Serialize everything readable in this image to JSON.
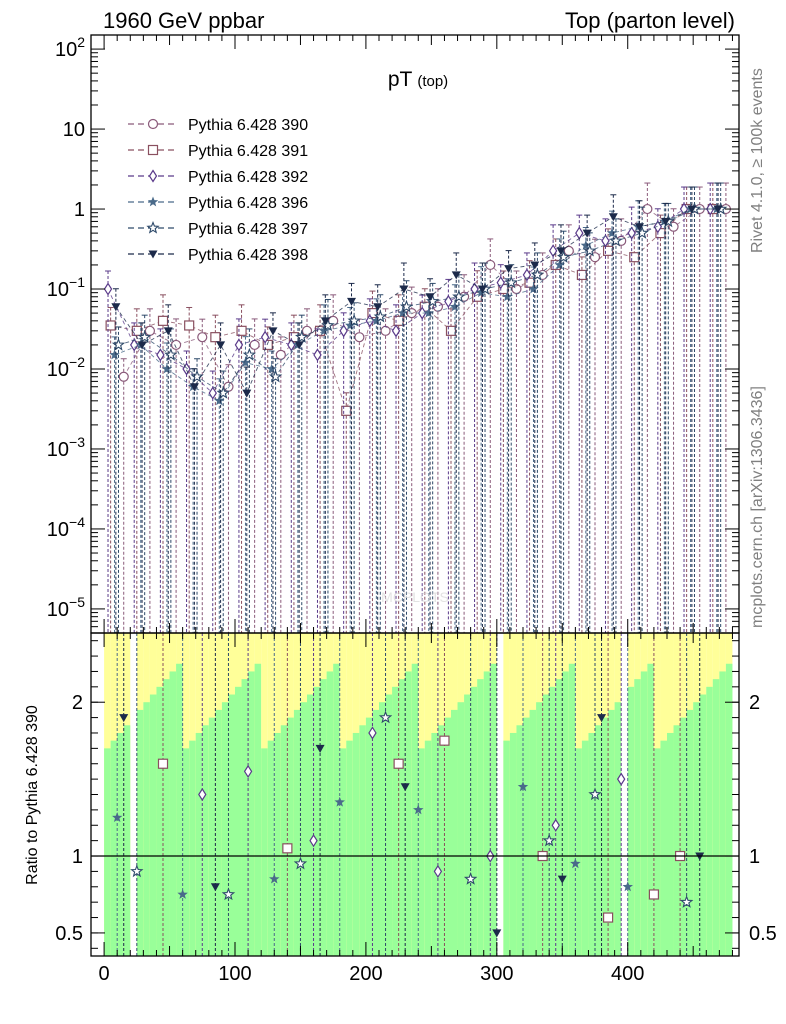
{
  "chart_data": [
    {
      "type": "scatter",
      "panel": "main",
      "title": "pT",
      "title_sub": "(top)",
      "top_left_label": "1960 GeV ppbar",
      "top_right_label": "Top (parton level)",
      "side_label_upper": "Rivet 4.1.0, ≥ 100k events",
      "side_label_lower": "mcplots.cern.ch [arXiv:1306.3436]",
      "yscale": "log",
      "xlim": [
        -10,
        485
      ],
      "ylim": [
        5e-06,
        150
      ],
      "xlabel": "",
      "ylabel": "",
      "y_ticks": [
        {
          "value": 100,
          "base": "10",
          "exp": "2"
        },
        {
          "value": 10,
          "base": "10",
          "exp": ""
        },
        {
          "value": 1,
          "base": "1",
          "exp": ""
        },
        {
          "value": 0.1,
          "base": "10",
          "exp": "−1"
        },
        {
          "value": 0.01,
          "base": "10",
          "exp": "−2"
        },
        {
          "value": 0.001,
          "base": "10",
          "exp": "−3"
        },
        {
          "value": 0.0001,
          "base": "10",
          "exp": "−4"
        },
        {
          "value": 1e-05,
          "base": "10",
          "exp": "−5"
        }
      ],
      "legend_position": "top-left",
      "series": [
        {
          "name": "Pythia 6.428 390",
          "color": "#8a5a7a",
          "marker": "circle-open",
          "x": [
            15,
            35,
            55,
            75,
            95,
            115,
            135,
            155,
            175,
            195,
            215,
            235,
            255,
            275,
            295,
            315,
            335,
            355,
            375,
            395,
            415,
            435,
            455,
            475
          ],
          "y": [
            0.008,
            0.03,
            0.02,
            0.025,
            0.006,
            0.02,
            0.015,
            0.03,
            0.04,
            0.025,
            0.03,
            0.05,
            0.06,
            0.08,
            0.2,
            0.1,
            0.15,
            0.3,
            0.25,
            0.4,
            1.0,
            0.6,
            1.0,
            1.0
          ]
        },
        {
          "name": "Pythia 6.428 391",
          "color": "#8a5060",
          "marker": "square-open",
          "x": [
            5,
            25,
            45,
            65,
            85,
            105,
            125,
            145,
            165,
            185,
            205,
            225,
            245,
            265,
            285,
            305,
            325,
            345,
            365,
            385,
            405,
            425,
            445,
            465
          ],
          "y": [
            0.035,
            0.03,
            0.04,
            0.035,
            0.025,
            0.03,
            0.02,
            0.025,
            0.03,
            0.003,
            0.05,
            0.04,
            0.06,
            0.03,
            0.08,
            0.1,
            0.12,
            0.2,
            0.15,
            0.3,
            0.25,
            0.5,
            1.0,
            1.0
          ]
        },
        {
          "name": "Pythia 6.428 392",
          "color": "#5a3a8a",
          "marker": "diamond-open",
          "x": [
            3,
            23,
            43,
            63,
            83,
            103,
            123,
            143,
            163,
            183,
            203,
            223,
            243,
            263,
            283,
            303,
            323,
            343,
            363,
            383,
            403,
            423,
            443,
            463
          ],
          "y": [
            0.1,
            0.02,
            0.015,
            0.01,
            0.005,
            0.02,
            0.025,
            0.02,
            0.015,
            0.03,
            0.04,
            0.03,
            0.05,
            0.07,
            0.1,
            0.12,
            0.15,
            0.3,
            0.5,
            0.4,
            0.5,
            0.6,
            1.0,
            1.0
          ]
        },
        {
          "name": "Pythia 6.428 396",
          "color": "#4a6a8a",
          "marker": "star-solid",
          "x": [
            8,
            28,
            48,
            68,
            88,
            108,
            128,
            148,
            168,
            188,
            208,
            228,
            248,
            268,
            288,
            308,
            328,
            348,
            368,
            388,
            408,
            428,
            448,
            468
          ],
          "y": [
            0.015,
            0.02,
            0.01,
            0.006,
            0.004,
            0.012,
            0.01,
            0.02,
            0.03,
            0.035,
            0.04,
            0.05,
            0.05,
            0.06,
            0.09,
            0.08,
            0.1,
            0.2,
            0.35,
            0.5,
            0.6,
            0.7,
            1.0,
            1.0
          ]
        },
        {
          "name": "Pythia 6.428 397",
          "color": "#2e4a6a",
          "marker": "star-open",
          "x": [
            11,
            31,
            51,
            71,
            91,
            111,
            131,
            151,
            171,
            191,
            211,
            231,
            251,
            271,
            291,
            311,
            331,
            351,
            371,
            391,
            411,
            431,
            451,
            471
          ],
          "y": [
            0.02,
            0.025,
            0.015,
            0.008,
            0.005,
            0.015,
            0.008,
            0.025,
            0.035,
            0.04,
            0.045,
            0.06,
            0.07,
            0.08,
            0.1,
            0.12,
            0.15,
            0.25,
            0.3,
            0.4,
            0.5,
            0.7,
            1.0,
            1.0
          ]
        },
        {
          "name": "Pythia 6.428 398",
          "color": "#1c2a4a",
          "marker": "triangle-down-solid",
          "x": [
            9,
            29,
            49,
            69,
            89,
            109,
            129,
            149,
            169,
            189,
            209,
            229,
            249,
            269,
            289,
            309,
            329,
            349,
            369,
            389,
            409,
            429,
            449,
            469
          ],
          "y": [
            0.06,
            0.02,
            0.03,
            0.006,
            0.02,
            0.005,
            0.03,
            0.02,
            0.04,
            0.07,
            0.06,
            0.1,
            0.08,
            0.15,
            0.1,
            0.18,
            0.2,
            0.3,
            0.5,
            0.8,
            0.6,
            0.7,
            1.0,
            1.0
          ]
        }
      ]
    },
    {
      "type": "scatter",
      "panel": "ratio",
      "ylabel": "Ratio to Pythia 6.428 390",
      "xlabel": "",
      "xlim": [
        -10,
        485
      ],
      "ylim": [
        0.35,
        2.45
      ],
      "x_ticks": [
        0,
        100,
        200,
        300,
        400
      ],
      "y_ticks": [
        0.5,
        1,
        2
      ],
      "reference_line": 1,
      "band_colors": {
        "inner": "#99ff99",
        "outer": "#ffff99"
      },
      "ratios": [
        {
          "series": "Pythia 6.428 391",
          "x": [
            45,
            140,
            225,
            260,
            335,
            385,
            420,
            440
          ],
          "y": [
            1.6,
            1.05,
            1.6,
            1.75,
            1.0,
            0.6,
            0.75,
            1.0
          ]
        },
        {
          "series": "Pythia 6.428 392",
          "x": [
            75,
            110,
            160,
            205,
            255,
            295,
            345,
            395
          ],
          "y": [
            1.4,
            1.55,
            1.1,
            1.8,
            0.9,
            1.0,
            1.2,
            1.5
          ]
        },
        {
          "series": "Pythia 6.428 396",
          "x": [
            10,
            60,
            130,
            180,
            240,
            320,
            360,
            400
          ],
          "y": [
            1.25,
            0.75,
            0.85,
            1.35,
            1.3,
            1.45,
            0.95,
            0.8
          ]
        },
        {
          "series": "Pythia 6.428 397",
          "x": [
            25,
            95,
            150,
            215,
            280,
            340,
            375,
            445
          ],
          "y": [
            0.9,
            0.75,
            0.95,
            1.9,
            0.85,
            1.1,
            1.4,
            0.7
          ]
        },
        {
          "series": "Pythia 6.428 398",
          "x": [
            15,
            85,
            165,
            230,
            300,
            350,
            380,
            455
          ],
          "y": [
            1.9,
            0.8,
            1.7,
            1.45,
            0.5,
            0.85,
            1.9,
            1.0
          ]
        }
      ]
    }
  ]
}
